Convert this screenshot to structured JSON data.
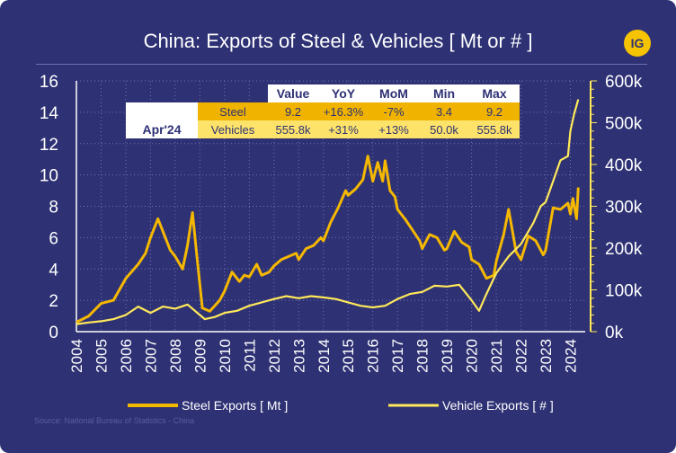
{
  "title": "China: Exports of Steel & Vehicles [ Mt or # ]",
  "logo": "IG",
  "source": "Source: National Bureau of Statistics - China",
  "colors": {
    "background": "#2e3174",
    "steel": "#f5b800",
    "vehicles": "#ffe95a",
    "table_header": "#ffffff",
    "steel_row": "#f0b400",
    "vehicle_row": "#fde36a",
    "date_cell": "#ffffff"
  },
  "table": {
    "date": "Apr'24",
    "headers": [
      "Value",
      "YoY",
      "MoM",
      "Min",
      "Max"
    ],
    "rows": [
      {
        "label": "Steel",
        "values": [
          "9.2",
          "+16.3%",
          "-7%",
          "3.4",
          "9.2"
        ]
      },
      {
        "label": "Vehicles",
        "values": [
          "555.8k",
          "+31%",
          "+13%",
          "50.0k",
          "555.8k"
        ]
      }
    ]
  },
  "chart_data": {
    "type": "line",
    "x_ticks": [
      "2004",
      "2005",
      "2006",
      "2007",
      "2008",
      "2009",
      "2010",
      "2011",
      "2012",
      "2013",
      "2014",
      "2015",
      "2016",
      "2017",
      "2018",
      "2019",
      "2020",
      "2021",
      "2022",
      "2023",
      "2024"
    ],
    "y_left": {
      "ticks": [
        "0",
        "2",
        "4",
        "6",
        "8",
        "10",
        "12",
        "14",
        "16"
      ],
      "range": [
        0,
        16
      ]
    },
    "y_right": {
      "ticks": [
        "0k",
        "100k",
        "200k",
        "300k",
        "400k",
        "500k",
        "600k"
      ],
      "range": [
        0,
        600000
      ]
    },
    "grid": true,
    "legend_position": "bottom",
    "series": [
      {
        "name": "Steel Exports [ Mt ]",
        "axis": "left",
        "points": [
          [
            2004.0,
            0.6
          ],
          [
            2004.5,
            1.0
          ],
          [
            2005.0,
            1.8
          ],
          [
            2005.5,
            2.0
          ],
          [
            2006.0,
            3.4
          ],
          [
            2006.5,
            4.3
          ],
          [
            2006.8,
            5.0
          ],
          [
            2007.0,
            6.0
          ],
          [
            2007.3,
            7.2
          ],
          [
            2007.5,
            6.4
          ],
          [
            2007.8,
            5.2
          ],
          [
            2008.0,
            4.8
          ],
          [
            2008.3,
            4.0
          ],
          [
            2008.5,
            5.5
          ],
          [
            2008.7,
            7.6
          ],
          [
            2008.9,
            4.5
          ],
          [
            2009.1,
            1.5
          ],
          [
            2009.4,
            1.3
          ],
          [
            2009.8,
            2.0
          ],
          [
            2010.0,
            2.6
          ],
          [
            2010.3,
            3.8
          ],
          [
            2010.6,
            3.2
          ],
          [
            2010.8,
            3.6
          ],
          [
            2011.0,
            3.5
          ],
          [
            2011.3,
            4.3
          ],
          [
            2011.5,
            3.6
          ],
          [
            2011.8,
            3.8
          ],
          [
            2012.0,
            4.2
          ],
          [
            2012.3,
            4.6
          ],
          [
            2012.6,
            4.8
          ],
          [
            2012.9,
            5.0
          ],
          [
            2013.0,
            4.6
          ],
          [
            2013.3,
            5.3
          ],
          [
            2013.6,
            5.5
          ],
          [
            2013.9,
            6.0
          ],
          [
            2014.0,
            5.8
          ],
          [
            2014.3,
            7.0
          ],
          [
            2014.6,
            7.9
          ],
          [
            2014.9,
            9.0
          ],
          [
            2015.0,
            8.7
          ],
          [
            2015.3,
            9.1
          ],
          [
            2015.6,
            9.7
          ],
          [
            2015.8,
            11.2
          ],
          [
            2016.0,
            9.6
          ],
          [
            2016.2,
            10.8
          ],
          [
            2016.4,
            9.6
          ],
          [
            2016.5,
            10.9
          ],
          [
            2016.7,
            9.0
          ],
          [
            2016.9,
            8.6
          ],
          [
            2017.0,
            7.8
          ],
          [
            2017.3,
            7.2
          ],
          [
            2017.6,
            6.5
          ],
          [
            2017.9,
            5.8
          ],
          [
            2018.0,
            5.3
          ],
          [
            2018.3,
            6.2
          ],
          [
            2018.6,
            6.0
          ],
          [
            2018.9,
            5.2
          ],
          [
            2019.0,
            5.3
          ],
          [
            2019.3,
            6.4
          ],
          [
            2019.6,
            5.7
          ],
          [
            2019.9,
            5.4
          ],
          [
            2020.0,
            4.6
          ],
          [
            2020.3,
            4.3
          ],
          [
            2020.6,
            3.4
          ],
          [
            2020.9,
            3.6
          ],
          [
            2021.0,
            4.5
          ],
          [
            2021.3,
            6.2
          ],
          [
            2021.5,
            7.8
          ],
          [
            2021.8,
            5.1
          ],
          [
            2022.0,
            4.6
          ],
          [
            2022.3,
            6.1
          ],
          [
            2022.6,
            5.8
          ],
          [
            2022.9,
            4.9
          ],
          [
            2023.0,
            5.2
          ],
          [
            2023.3,
            7.9
          ],
          [
            2023.6,
            7.8
          ],
          [
            2023.9,
            8.2
          ],
          [
            2024.0,
            7.5
          ],
          [
            2024.1,
            8.5
          ],
          [
            2024.25,
            7.2
          ],
          [
            2024.32,
            9.2
          ]
        ]
      },
      {
        "name": "Vehicle Exports [ # ]",
        "axis": "right",
        "points": [
          [
            2004.0,
            18000
          ],
          [
            2004.5,
            22000
          ],
          [
            2005.0,
            25000
          ],
          [
            2005.5,
            30000
          ],
          [
            2006.0,
            40000
          ],
          [
            2006.5,
            60000
          ],
          [
            2007.0,
            45000
          ],
          [
            2007.5,
            60000
          ],
          [
            2008.0,
            55000
          ],
          [
            2008.5,
            65000
          ],
          [
            2008.9,
            45000
          ],
          [
            2009.2,
            30000
          ],
          [
            2009.6,
            35000
          ],
          [
            2010.0,
            45000
          ],
          [
            2010.5,
            50000
          ],
          [
            2011.0,
            62000
          ],
          [
            2011.5,
            70000
          ],
          [
            2012.0,
            78000
          ],
          [
            2012.5,
            85000
          ],
          [
            2013.0,
            80000
          ],
          [
            2013.5,
            85000
          ],
          [
            2014.0,
            82000
          ],
          [
            2014.5,
            78000
          ],
          [
            2015.0,
            70000
          ],
          [
            2015.5,
            62000
          ],
          [
            2016.0,
            58000
          ],
          [
            2016.5,
            62000
          ],
          [
            2017.0,
            78000
          ],
          [
            2017.5,
            90000
          ],
          [
            2018.0,
            95000
          ],
          [
            2018.5,
            110000
          ],
          [
            2019.0,
            108000
          ],
          [
            2019.5,
            112000
          ],
          [
            2020.0,
            75000
          ],
          [
            2020.3,
            50000
          ],
          [
            2020.6,
            90000
          ],
          [
            2021.0,
            140000
          ],
          [
            2021.5,
            180000
          ],
          [
            2022.0,
            210000
          ],
          [
            2022.5,
            260000
          ],
          [
            2022.8,
            300000
          ],
          [
            2023.0,
            310000
          ],
          [
            2023.3,
            360000
          ],
          [
            2023.6,
            410000
          ],
          [
            2023.9,
            420000
          ],
          [
            2024.0,
            480000
          ],
          [
            2024.15,
            520000
          ],
          [
            2024.32,
            555800
          ]
        ]
      }
    ]
  }
}
